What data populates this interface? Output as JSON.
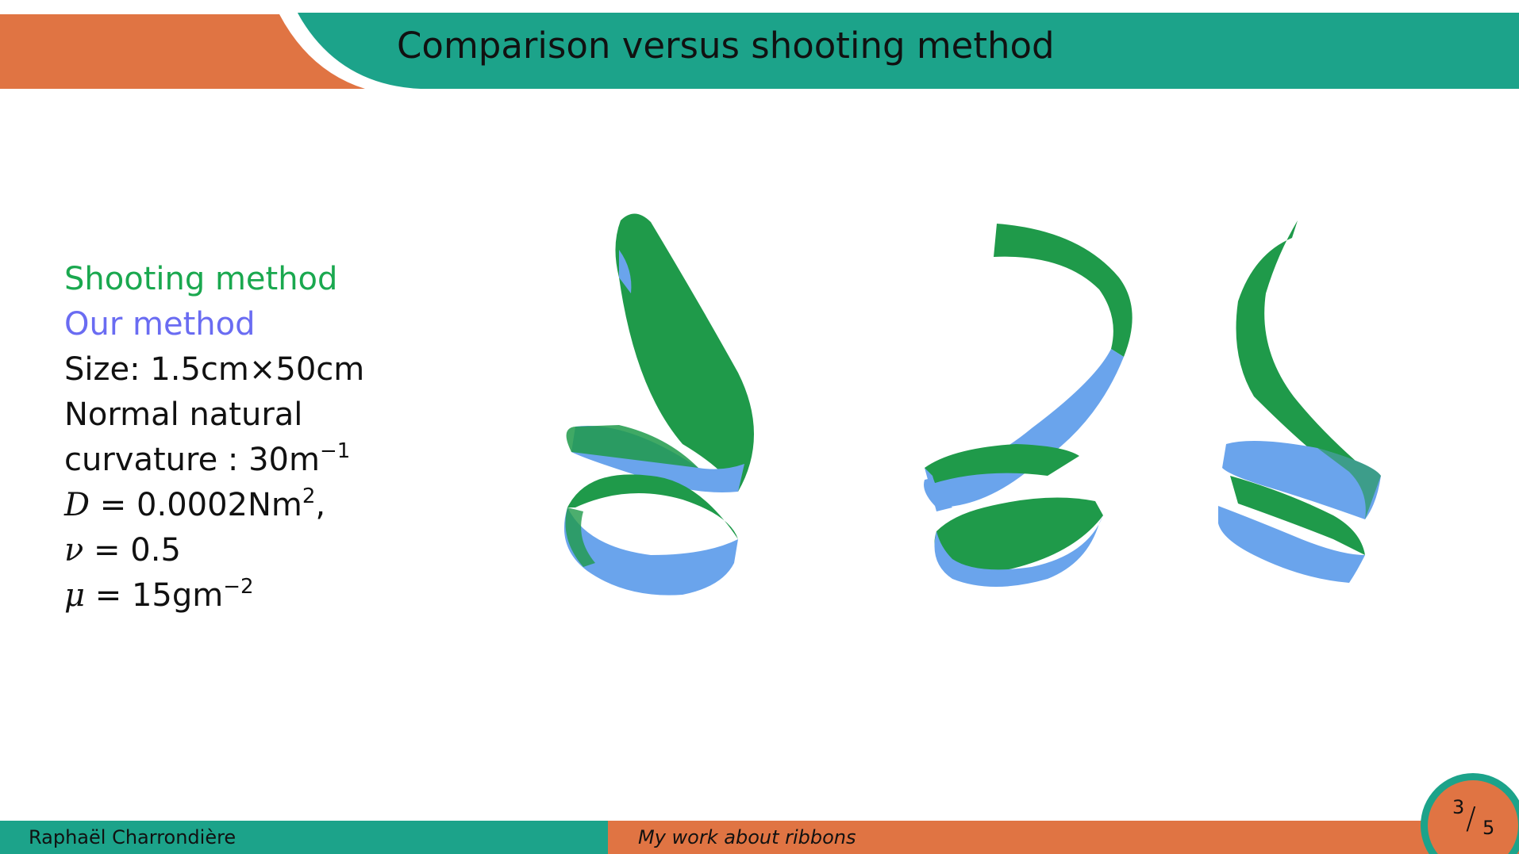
{
  "slide": {
    "title": "Comparison versus shooting method"
  },
  "legend": {
    "shooting": "Shooting method",
    "ours": "Our method"
  },
  "params": {
    "size_label": "Size:",
    "size_value": "1.5cm×50cm",
    "curv_line1": "Normal natural",
    "curv_line2": "curvature  : 30m",
    "curv_exp": "−1",
    "d_sym": "D",
    "d_eq": " = 0.0002Nm",
    "d_exp": "2",
    "d_tail": ",",
    "nu_sym": "ν",
    "nu_eq": " = 0.5",
    "mu_sym": "μ",
    "mu_eq": " = 15gm",
    "mu_exp": "−2"
  },
  "colors": {
    "teal": "#1ca38a",
    "orange": "#e07443",
    "shooting_green": "#1aa84f",
    "ours_blue": "#6aa4ec"
  },
  "footer": {
    "author": "Raphaël Charrondière",
    "talk_title": "My work about ribbons",
    "page_current": "3",
    "page_total": "5"
  }
}
